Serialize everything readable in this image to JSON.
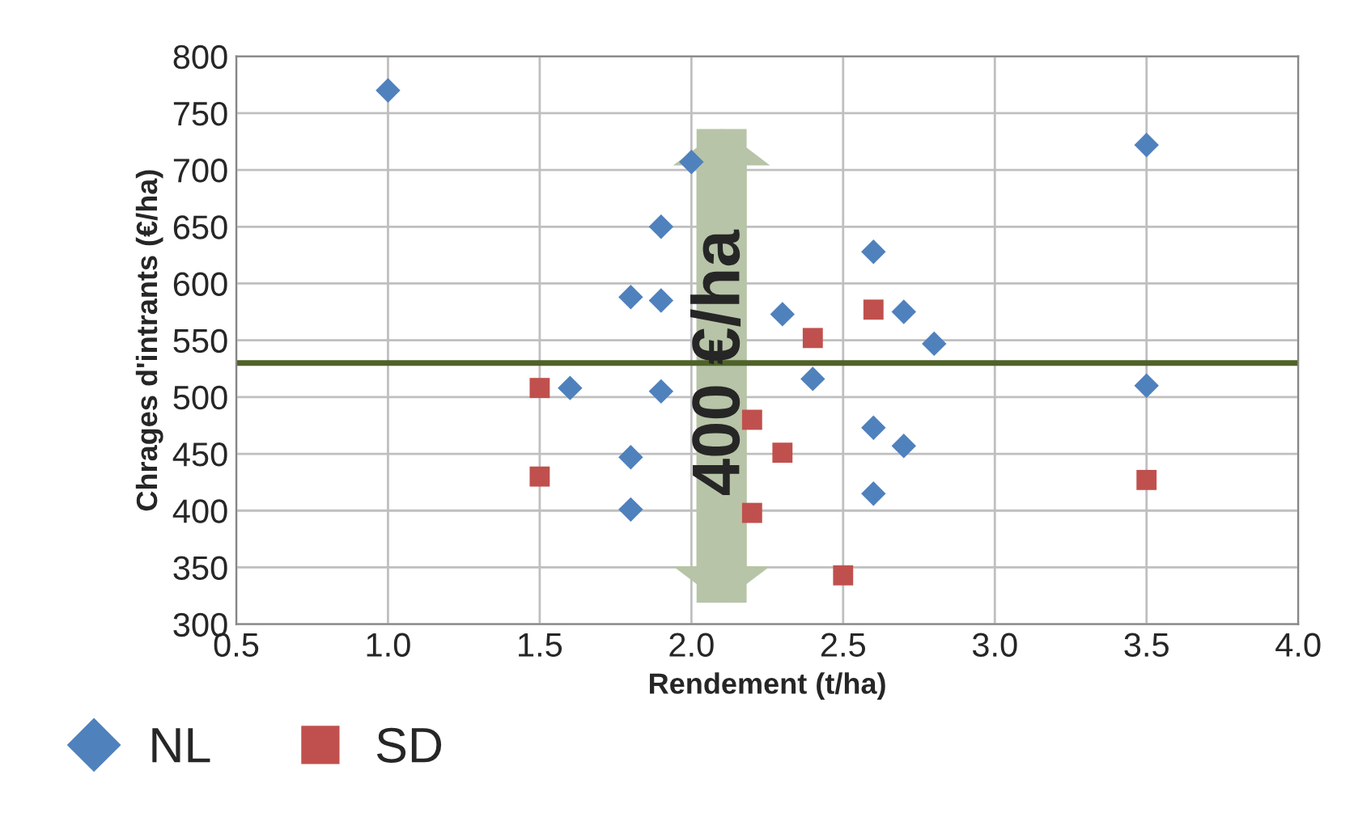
{
  "chart_data": {
    "type": "scatter",
    "xlabel": "Rendement (t/ha)",
    "ylabel": "Chrages d'intrants (€/ha)",
    "series": [
      {
        "name": "NL",
        "color": "#4f81bd",
        "marker": "diamond",
        "x": [
          1.0,
          2.0,
          1.9,
          1.8,
          1.9,
          1.6,
          1.9,
          1.8,
          1.8,
          2.3,
          2.4,
          2.6,
          2.6,
          2.6,
          2.7,
          2.7,
          2.8,
          3.5,
          3.5
        ],
        "values": [
          770,
          707,
          650,
          588,
          585,
          508,
          505,
          447,
          401,
          573,
          516,
          628,
          473,
          415,
          575,
          457,
          547,
          722,
          510
        ]
      },
      {
        "name": "SD",
        "color": "#c0504d",
        "marker": "square",
        "x": [
          1.5,
          1.5,
          2.2,
          2.2,
          2.3,
          2.4,
          2.5,
          2.6,
          3.5
        ],
        "values": [
          508,
          430,
          480,
          398,
          451,
          552,
          343,
          577,
          427
        ]
      }
    ],
    "xlim": [
      0.5,
      4.0
    ],
    "xticks": [
      {
        "value": 0.5,
        "label": "0.5"
      },
      {
        "value": 1.0,
        "label": "1.0"
      },
      {
        "value": 1.5,
        "label": "1.5"
      },
      {
        "value": 2.0,
        "label": "2.0"
      },
      {
        "value": 2.5,
        "label": "2.5"
      },
      {
        "value": 3.0,
        "label": "3.0"
      },
      {
        "value": 3.5,
        "label": "3.5"
      },
      {
        "value": 4.0,
        "label": "4.0"
      }
    ],
    "ylim": [
      300,
      800
    ],
    "yticks": [
      300,
      350,
      400,
      450,
      500,
      550,
      600,
      650,
      700,
      750,
      800
    ],
    "ref_lines": [
      {
        "axis": "y",
        "value": 530,
        "color": "#4f6228"
      }
    ],
    "annotations": [
      {
        "text": "400 €/ha",
        "x": 2.1,
        "y": 530
      }
    ],
    "grid": true,
    "legend": "bottom left"
  }
}
